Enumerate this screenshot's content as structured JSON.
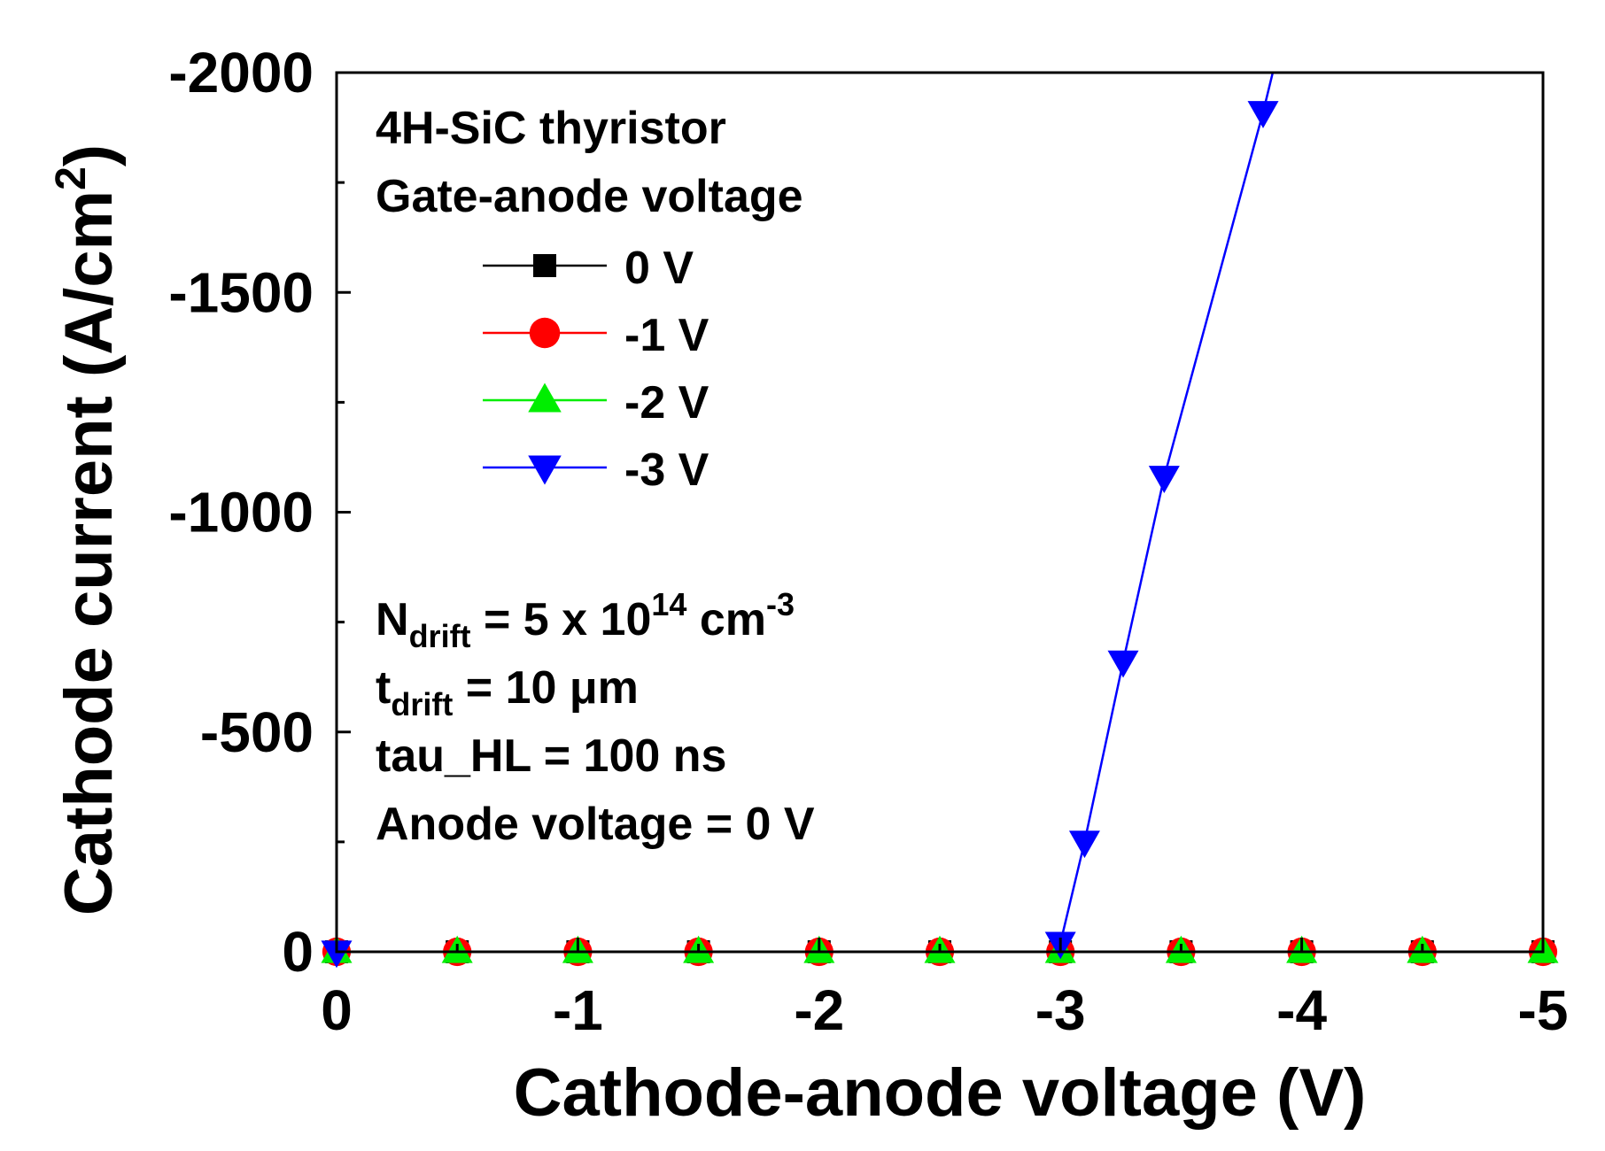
{
  "chart_data": {
    "type": "line",
    "title": "",
    "xlabel": "Cathode-anode voltage (V)",
    "ylabel": {
      "main": "Cathode current (A/cm",
      "sup": "2",
      "end": ")"
    },
    "xlim": [
      0,
      -5
    ],
    "ylim": [
      0,
      -2000
    ],
    "x_ticks": [
      0,
      -1,
      -2,
      -3,
      -4,
      -5
    ],
    "x_tick_labels": [
      "0",
      "-1",
      "-2",
      "-3",
      "-4",
      "-5"
    ],
    "y_ticks": [
      0,
      -500,
      -1000,
      -1500,
      -2000
    ],
    "y_tick_labels": [
      "0",
      "-500",
      "-1000",
      "-1500",
      "-2000"
    ],
    "legend_position": "top-left",
    "legend_header": [
      "4H-SiC thyristor",
      "Gate-anode voltage"
    ],
    "series": [
      {
        "name": "0 V",
        "color": "#000000",
        "marker": "square",
        "x": [
          0,
          -0.5,
          -1,
          -1.5,
          -2,
          -2.5,
          -3,
          -3.5,
          -4,
          -4.5,
          -5
        ],
        "y": [
          0,
          0,
          0,
          0,
          0,
          0,
          0,
          0,
          0,
          0,
          0
        ]
      },
      {
        "name": "-1 V",
        "color": "#ff0000",
        "marker": "circle",
        "x": [
          0,
          -0.5,
          -1,
          -1.5,
          -2,
          -2.5,
          -3,
          -3.5,
          -4,
          -4.5,
          -5
        ],
        "y": [
          0,
          0,
          0,
          0,
          0,
          0,
          0,
          0,
          0,
          0,
          0
        ]
      },
      {
        "name": "-2 V",
        "color": "#00ee00",
        "marker": "triangle-up",
        "x": [
          0,
          -0.5,
          -1,
          -1.5,
          -2,
          -2.5,
          -3,
          -3.5,
          -4,
          -4.5,
          -5
        ],
        "y": [
          0,
          0,
          0,
          0,
          0,
          0,
          0,
          0,
          0,
          0,
          0
        ]
      },
      {
        "name": "-3 V",
        "color": "#0000ff",
        "marker": "triangle-down",
        "x": [
          0,
          -2.95,
          -3.0,
          -3.1,
          -3.26,
          -3.43,
          -3.84,
          -3.88
        ],
        "y": [
          0,
          0,
          -20,
          -250,
          -660,
          -1080,
          -1910,
          -2000
        ],
        "marker_indices": [
          0,
          2,
          3,
          4,
          5,
          6
        ]
      }
    ],
    "annotations": [
      {
        "lines": [
          {
            "parts": [
              {
                "t": "N"
              },
              {
                "t": "drift",
                "sub": true
              },
              {
                "t": " = 5 x 10"
              },
              {
                "t": "14",
                "sup": true
              },
              {
                "t": " cm"
              },
              {
                "t": "-3",
                "sup": true
              }
            ]
          },
          {
            "parts": [
              {
                "t": "t"
              },
              {
                "t": "drift",
                "sub": true
              },
              {
                "t": " = 10 μm"
              }
            ]
          },
          {
            "parts": [
              {
                "t": "tau_HL = 100 ns"
              }
            ]
          },
          {
            "parts": [
              {
                "t": "Anode voltage = 0 V"
              }
            ]
          }
        ]
      }
    ]
  }
}
